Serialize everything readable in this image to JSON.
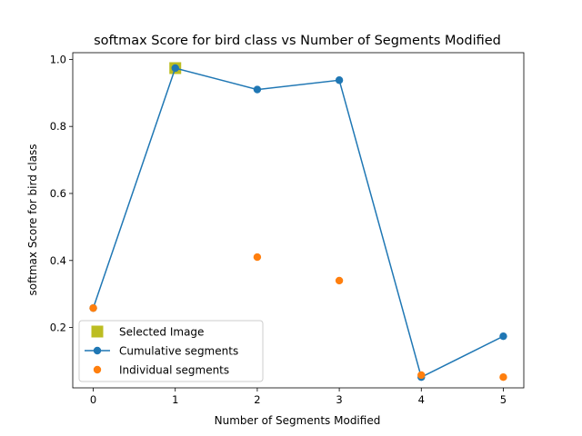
{
  "chart_data": {
    "type": "line",
    "title": "softmax Score for bird class vs Number of Segments Modified",
    "xlabel": "Number of Segments Modified",
    "ylabel": "softmax Score for bird class",
    "xlim": [
      -0.25,
      5.25
    ],
    "ylim": [
      0.02,
      1.02
    ],
    "xticks": [
      0,
      1,
      2,
      3,
      4,
      5
    ],
    "yticks": [
      0.2,
      0.4,
      0.6,
      0.8,
      1.0
    ],
    "ytick_labels": [
      "0.2",
      "0.4",
      "0.6",
      "0.8",
      "1.0"
    ],
    "grid": false,
    "legend_position": "lower-left",
    "series": [
      {
        "name": "Selected Image",
        "style": "marker",
        "marker": "square",
        "color": "#bcbd22",
        "x": [
          1
        ],
        "y": [
          0.974
        ]
      },
      {
        "name": "Cumulative segments",
        "style": "line-marker",
        "marker": "circle",
        "color": "#1f77b4",
        "x": [
          0,
          1,
          2,
          3,
          4,
          5
        ],
        "y": [
          0.258,
          0.974,
          0.91,
          0.938,
          0.052,
          0.174
        ]
      },
      {
        "name": "Individual segments",
        "style": "marker",
        "marker": "circle",
        "color": "#ff7f0e",
        "x": [
          0,
          2,
          3,
          4,
          5
        ],
        "y": [
          0.258,
          0.41,
          0.34,
          0.058,
          0.052
        ]
      }
    ]
  }
}
